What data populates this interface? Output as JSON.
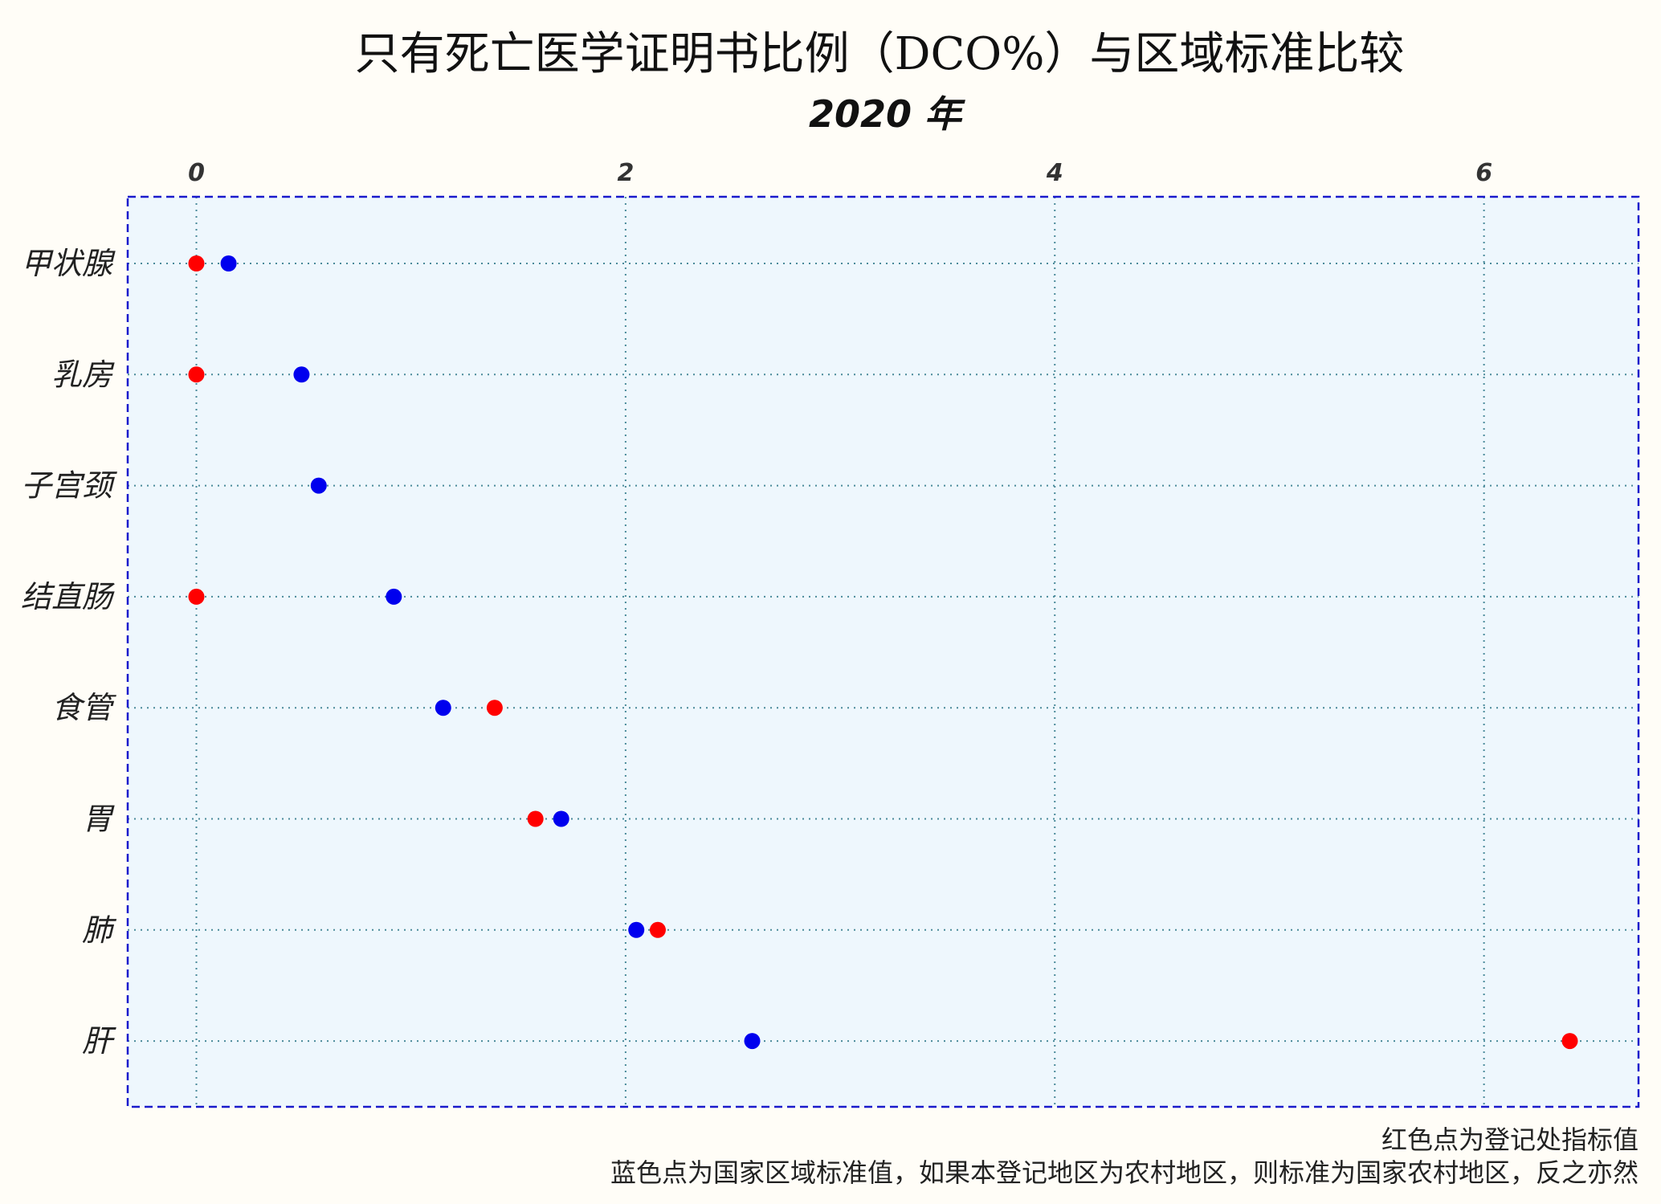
{
  "chart_data": {
    "type": "scatter",
    "title": "只有死亡医学证明书比例（DCO%）与区域标准比较",
    "subtitle": "2020 年",
    "xlabel": "",
    "ylabel": "",
    "xlim": [
      -0.32,
      6.72
    ],
    "x_ticks": [
      "0",
      "2",
      "4",
      "6"
    ],
    "x_tick_values": [
      0,
      2,
      4,
      6
    ],
    "x_axis_position": "top",
    "grid": true,
    "categories": [
      "甲状腺",
      "乳房",
      "子宫颈",
      "结直肠",
      "食管",
      "胃",
      "肺",
      "肝"
    ],
    "series": [
      {
        "color": "#ff0000",
        "values": [
          0.0,
          0.0,
          null,
          0.0,
          1.39,
          1.58,
          2.15,
          6.4
        ]
      },
      {
        "color": "#0000ee",
        "values": [
          0.15,
          0.49,
          0.57,
          0.92,
          1.15,
          1.7,
          2.05,
          2.59
        ]
      }
    ],
    "panel_background": "#eef7fd",
    "border_color": "#1a1acc",
    "grid_color": "#4a8a9a",
    "captions": [
      "红色点为登记处指标值",
      "蓝色点为国家区域标准值，如果本登记地区为农村地区，则标准为国家农村地区，反之亦然"
    ]
  }
}
